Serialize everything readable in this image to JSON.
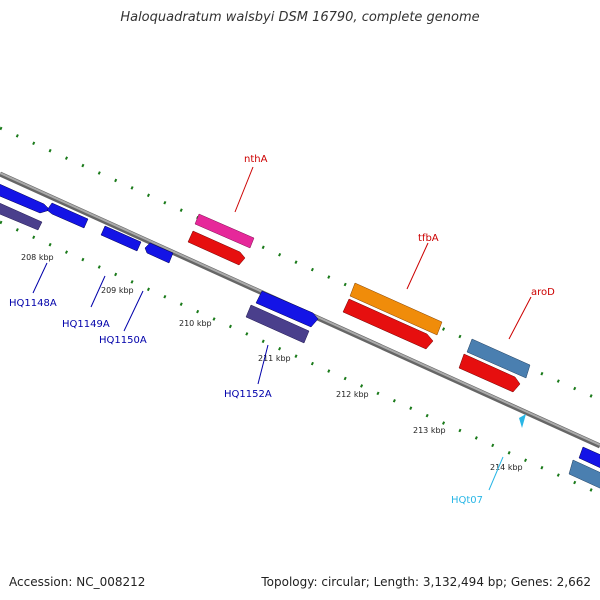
{
  "title": "Haloquadratum walsbyi DSM 16790, complete genome",
  "footer": {
    "accession": "Accession: NC_008212",
    "summary": "Topology: circular; Length: 3,132,494 bp; Genes: 2,662"
  },
  "ticks": [
    "208 kbp",
    "209 kbp",
    "210 kbp",
    "211 kbp",
    "212 kbp",
    "213 kbp",
    "214 kbp"
  ],
  "gene_labels": {
    "nthA": "nthA",
    "tfbA": "tfbA",
    "aroD": "aroD",
    "HQ1148A": "HQ1148A",
    "HQ1149A": "HQ1149A",
    "HQ1150A": "HQ1150A",
    "HQ1152A": "HQ1152A",
    "HQt07": "HQt07"
  },
  "colors": {
    "backbone": "#888888",
    "gc_skew": "#1a7a1a",
    "cds_blue": "#1414e6",
    "cds_purple": "#4a3f8c",
    "cds_red": "#e60f0f",
    "cds_pink": "#e6289a",
    "cds_orange": "#f08c0a",
    "cds_steel": "#4a7fb0",
    "trna": "#29b6e6",
    "label_red": "#cc0000",
    "label_blue": "#0000aa",
    "label_cyan": "#29b6e6"
  }
}
